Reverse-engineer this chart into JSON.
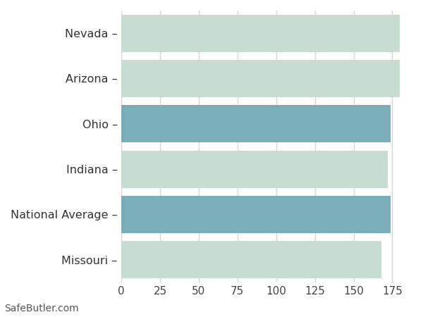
{
  "categories": [
    "Nevada",
    "Arizona",
    "Ohio",
    "Indiana",
    "National Average",
    "Missouri"
  ],
  "values": [
    180,
    180,
    174,
    172,
    174,
    168
  ],
  "bar_colors": [
    "#c8ddd1",
    "#c8ddd1",
    "#7aadba",
    "#c8ddd1",
    "#7aadba",
    "#c8ddd1"
  ],
  "background_color": "#ffffff",
  "grid_color": "#d0d8d0",
  "xlim": [
    0,
    188
  ],
  "xticks": [
    0,
    25,
    50,
    75,
    100,
    125,
    150,
    175
  ],
  "bar_height": 0.82,
  "footnote": "SafeButler.com",
  "footnote_fontsize": 10,
  "tick_fontsize": 11,
  "label_fontsize": 11.5
}
